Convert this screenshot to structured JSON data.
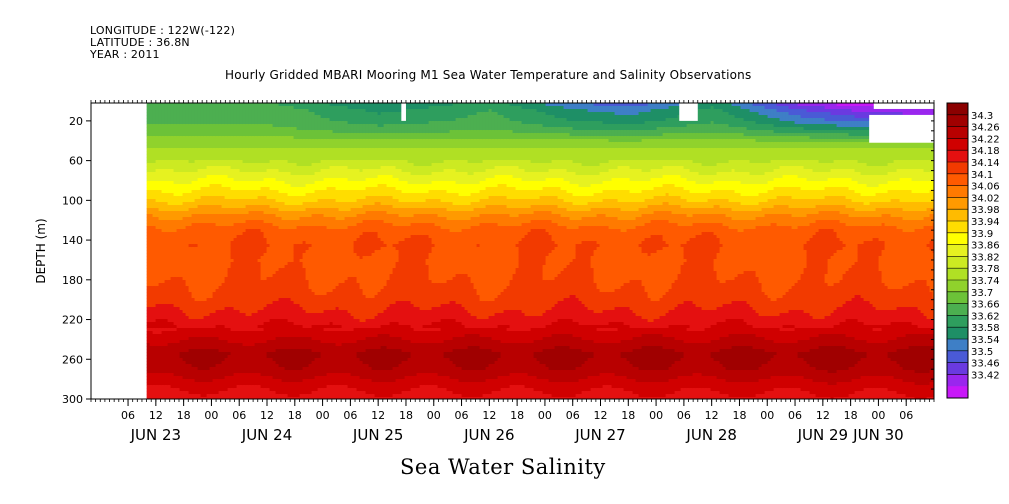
{
  "header": {
    "longitude": "LONGITUDE : 122W(-122)",
    "latitude": "LATITUDE : 36.8N",
    "year": "YEAR : 2011"
  },
  "title": "Hourly Gridded MBARI Mooring M1 Sea Water Temperature and Salinity Observations",
  "variable_title": "Sea Water Salinity",
  "chart_data": {
    "type": "heatmap",
    "title": "Hourly Gridded MBARI Mooring M1 Sea Water Temperature and Salinity Observations",
    "xlabel": "",
    "ylabel": "DEPTH (m)",
    "variable": "Sea Water Salinity",
    "x_range": [
      "2011-06-22T22:00",
      "2011-06-30T12:00"
    ],
    "data_start": "2011-06-23T10:00",
    "y_range": [
      300,
      2
    ],
    "y_ticks": [
      20,
      60,
      100,
      140,
      180,
      220,
      260,
      300
    ],
    "y_tick_labels": [
      "20",
      "60",
      "100",
      "140",
      "180",
      "220",
      "260",
      "300"
    ],
    "x_hour_labels": [
      {
        "t": "2011-06-23T06:00",
        "label": "06"
      },
      {
        "t": "2011-06-23T12:00",
        "label": "12"
      },
      {
        "t": "2011-06-23T18:00",
        "label": "18"
      },
      {
        "t": "2011-06-24T00:00",
        "label": "00"
      },
      {
        "t": "2011-06-24T06:00",
        "label": "06"
      },
      {
        "t": "2011-06-24T12:00",
        "label": "12"
      },
      {
        "t": "2011-06-24T18:00",
        "label": "18"
      },
      {
        "t": "2011-06-25T00:00",
        "label": "00"
      },
      {
        "t": "2011-06-25T06:00",
        "label": "06"
      },
      {
        "t": "2011-06-25T12:00",
        "label": "12"
      },
      {
        "t": "2011-06-25T18:00",
        "label": "18"
      },
      {
        "t": "2011-06-26T00:00",
        "label": "00"
      },
      {
        "t": "2011-06-26T06:00",
        "label": "06"
      },
      {
        "t": "2011-06-26T12:00",
        "label": "12"
      },
      {
        "t": "2011-06-26T18:00",
        "label": "18"
      },
      {
        "t": "2011-06-27T00:00",
        "label": "00"
      },
      {
        "t": "2011-06-27T06:00",
        "label": "06"
      },
      {
        "t": "2011-06-27T12:00",
        "label": "12"
      },
      {
        "t": "2011-06-27T18:00",
        "label": "18"
      },
      {
        "t": "2011-06-28T00:00",
        "label": "00"
      },
      {
        "t": "2011-06-28T06:00",
        "label": "06"
      },
      {
        "t": "2011-06-28T12:00",
        "label": "12"
      },
      {
        "t": "2011-06-28T18:00",
        "label": "18"
      },
      {
        "t": "2011-06-29T00:00",
        "label": "00"
      },
      {
        "t": "2011-06-29T06:00",
        "label": "06"
      },
      {
        "t": "2011-06-29T12:00",
        "label": "12"
      },
      {
        "t": "2011-06-29T18:00",
        "label": "18"
      },
      {
        "t": "2011-06-30T00:00",
        "label": "00"
      },
      {
        "t": "2011-06-30T06:00",
        "label": "06"
      }
    ],
    "x_day_labels": [
      {
        "t": "2011-06-23T12:00",
        "label": "JUN 23"
      },
      {
        "t": "2011-06-24T12:00",
        "label": "JUN 24"
      },
      {
        "t": "2011-06-25T12:00",
        "label": "JUN 25"
      },
      {
        "t": "2011-06-26T12:00",
        "label": "JUN 26"
      },
      {
        "t": "2011-06-27T12:00",
        "label": "JUN 27"
      },
      {
        "t": "2011-06-28T12:00",
        "label": "JUN 28"
      },
      {
        "t": "2011-06-29T12:00",
        "label": "JUN 29"
      },
      {
        "t": "2011-06-30T00:00",
        "label": "JUN 30"
      }
    ],
    "depth_profile": [
      {
        "depth": 2,
        "salinity": 33.64
      },
      {
        "depth": 10,
        "salinity": 33.66
      },
      {
        "depth": 20,
        "salinity": 33.66
      },
      {
        "depth": 30,
        "salinity": 33.68
      },
      {
        "depth": 40,
        "salinity": 33.72
      },
      {
        "depth": 60,
        "salinity": 33.78
      },
      {
        "depth": 80,
        "salinity": 33.86
      },
      {
        "depth": 100,
        "salinity": 33.94
      },
      {
        "depth": 115,
        "salinity": 34.02
      },
      {
        "depth": 130,
        "salinity": 34.08
      },
      {
        "depth": 145,
        "salinity": 34.1
      },
      {
        "depth": 160,
        "salinity": 34.09
      },
      {
        "depth": 180,
        "salinity": 34.1
      },
      {
        "depth": 200,
        "salinity": 34.12
      },
      {
        "depth": 220,
        "salinity": 34.16
      },
      {
        "depth": 240,
        "salinity": 34.22
      },
      {
        "depth": 255,
        "salinity": 34.27
      },
      {
        "depth": 270,
        "salinity": 34.25
      },
      {
        "depth": 285,
        "salinity": 34.2
      },
      {
        "depth": 300,
        "salinity": 34.16
      }
    ],
    "surface_freshening": [
      {
        "t": "2011-06-23T10:00",
        "salinity": 33.64
      },
      {
        "t": "2011-06-24T12:00",
        "salinity": 33.64
      },
      {
        "t": "2011-06-25T12:00",
        "salinity": 33.58
      },
      {
        "t": "2011-06-26T12:00",
        "salinity": 33.62
      },
      {
        "t": "2011-06-27T06:00",
        "salinity": 33.56
      },
      {
        "t": "2011-06-27T18:00",
        "salinity": 33.54
      },
      {
        "t": "2011-06-28T12:00",
        "salinity": 33.6
      },
      {
        "t": "2011-06-29T06:00",
        "salinity": 33.5
      },
      {
        "t": "2011-06-29T18:00",
        "salinity": 33.46
      },
      {
        "t": "2011-06-30T06:00",
        "salinity": 33.44
      }
    ],
    "missing_data": [
      {
        "t_start": "2011-06-22T22:00",
        "t_end": "2011-06-23T10:00",
        "depth_top": 2,
        "depth_bottom": 300
      },
      {
        "t_start": "2011-06-25T17:00",
        "t_end": "2011-06-25T18:00",
        "depth_top": 2,
        "depth_bottom": 20
      },
      {
        "t_start": "2011-06-28T05:00",
        "t_end": "2011-06-28T09:00",
        "depth_top": 2,
        "depth_bottom": 20
      },
      {
        "t_start": "2011-06-29T23:00",
        "t_end": "2011-06-30T12:00",
        "depth_top": 2,
        "depth_bottom": 8
      },
      {
        "t_start": "2011-06-29T22:00",
        "t_end": "2011-06-30T12:00",
        "depth_top": 14,
        "depth_bottom": 42
      }
    ],
    "colorbar": {
      "labels": [
        "34.3",
        "34.26",
        "34.22",
        "34.18",
        "34.14",
        "34.1",
        "34.06",
        "34.02",
        "33.98",
        "33.94",
        "33.9",
        "33.86",
        "33.82",
        "33.78",
        "33.74",
        "33.7",
        "33.66",
        "33.62",
        "33.58",
        "33.54",
        "33.5",
        "33.46",
        "33.42"
      ],
      "colors": [
        "#8b0000",
        "#a00000",
        "#b80000",
        "#d00000",
        "#e41010",
        "#f23a00",
        "#ff5a00",
        "#ff7a00",
        "#ff9a00",
        "#ffbb00",
        "#ffdd00",
        "#ffff00",
        "#e6f220",
        "#ccea22",
        "#b0e024",
        "#90d22c",
        "#6cc238",
        "#4caf50",
        "#2e9e5e",
        "#1e8f66",
        "#3e7fc6",
        "#4a5ad6",
        "#6a3ae0",
        "#9a26ee",
        "#c818f8"
      ]
    }
  }
}
